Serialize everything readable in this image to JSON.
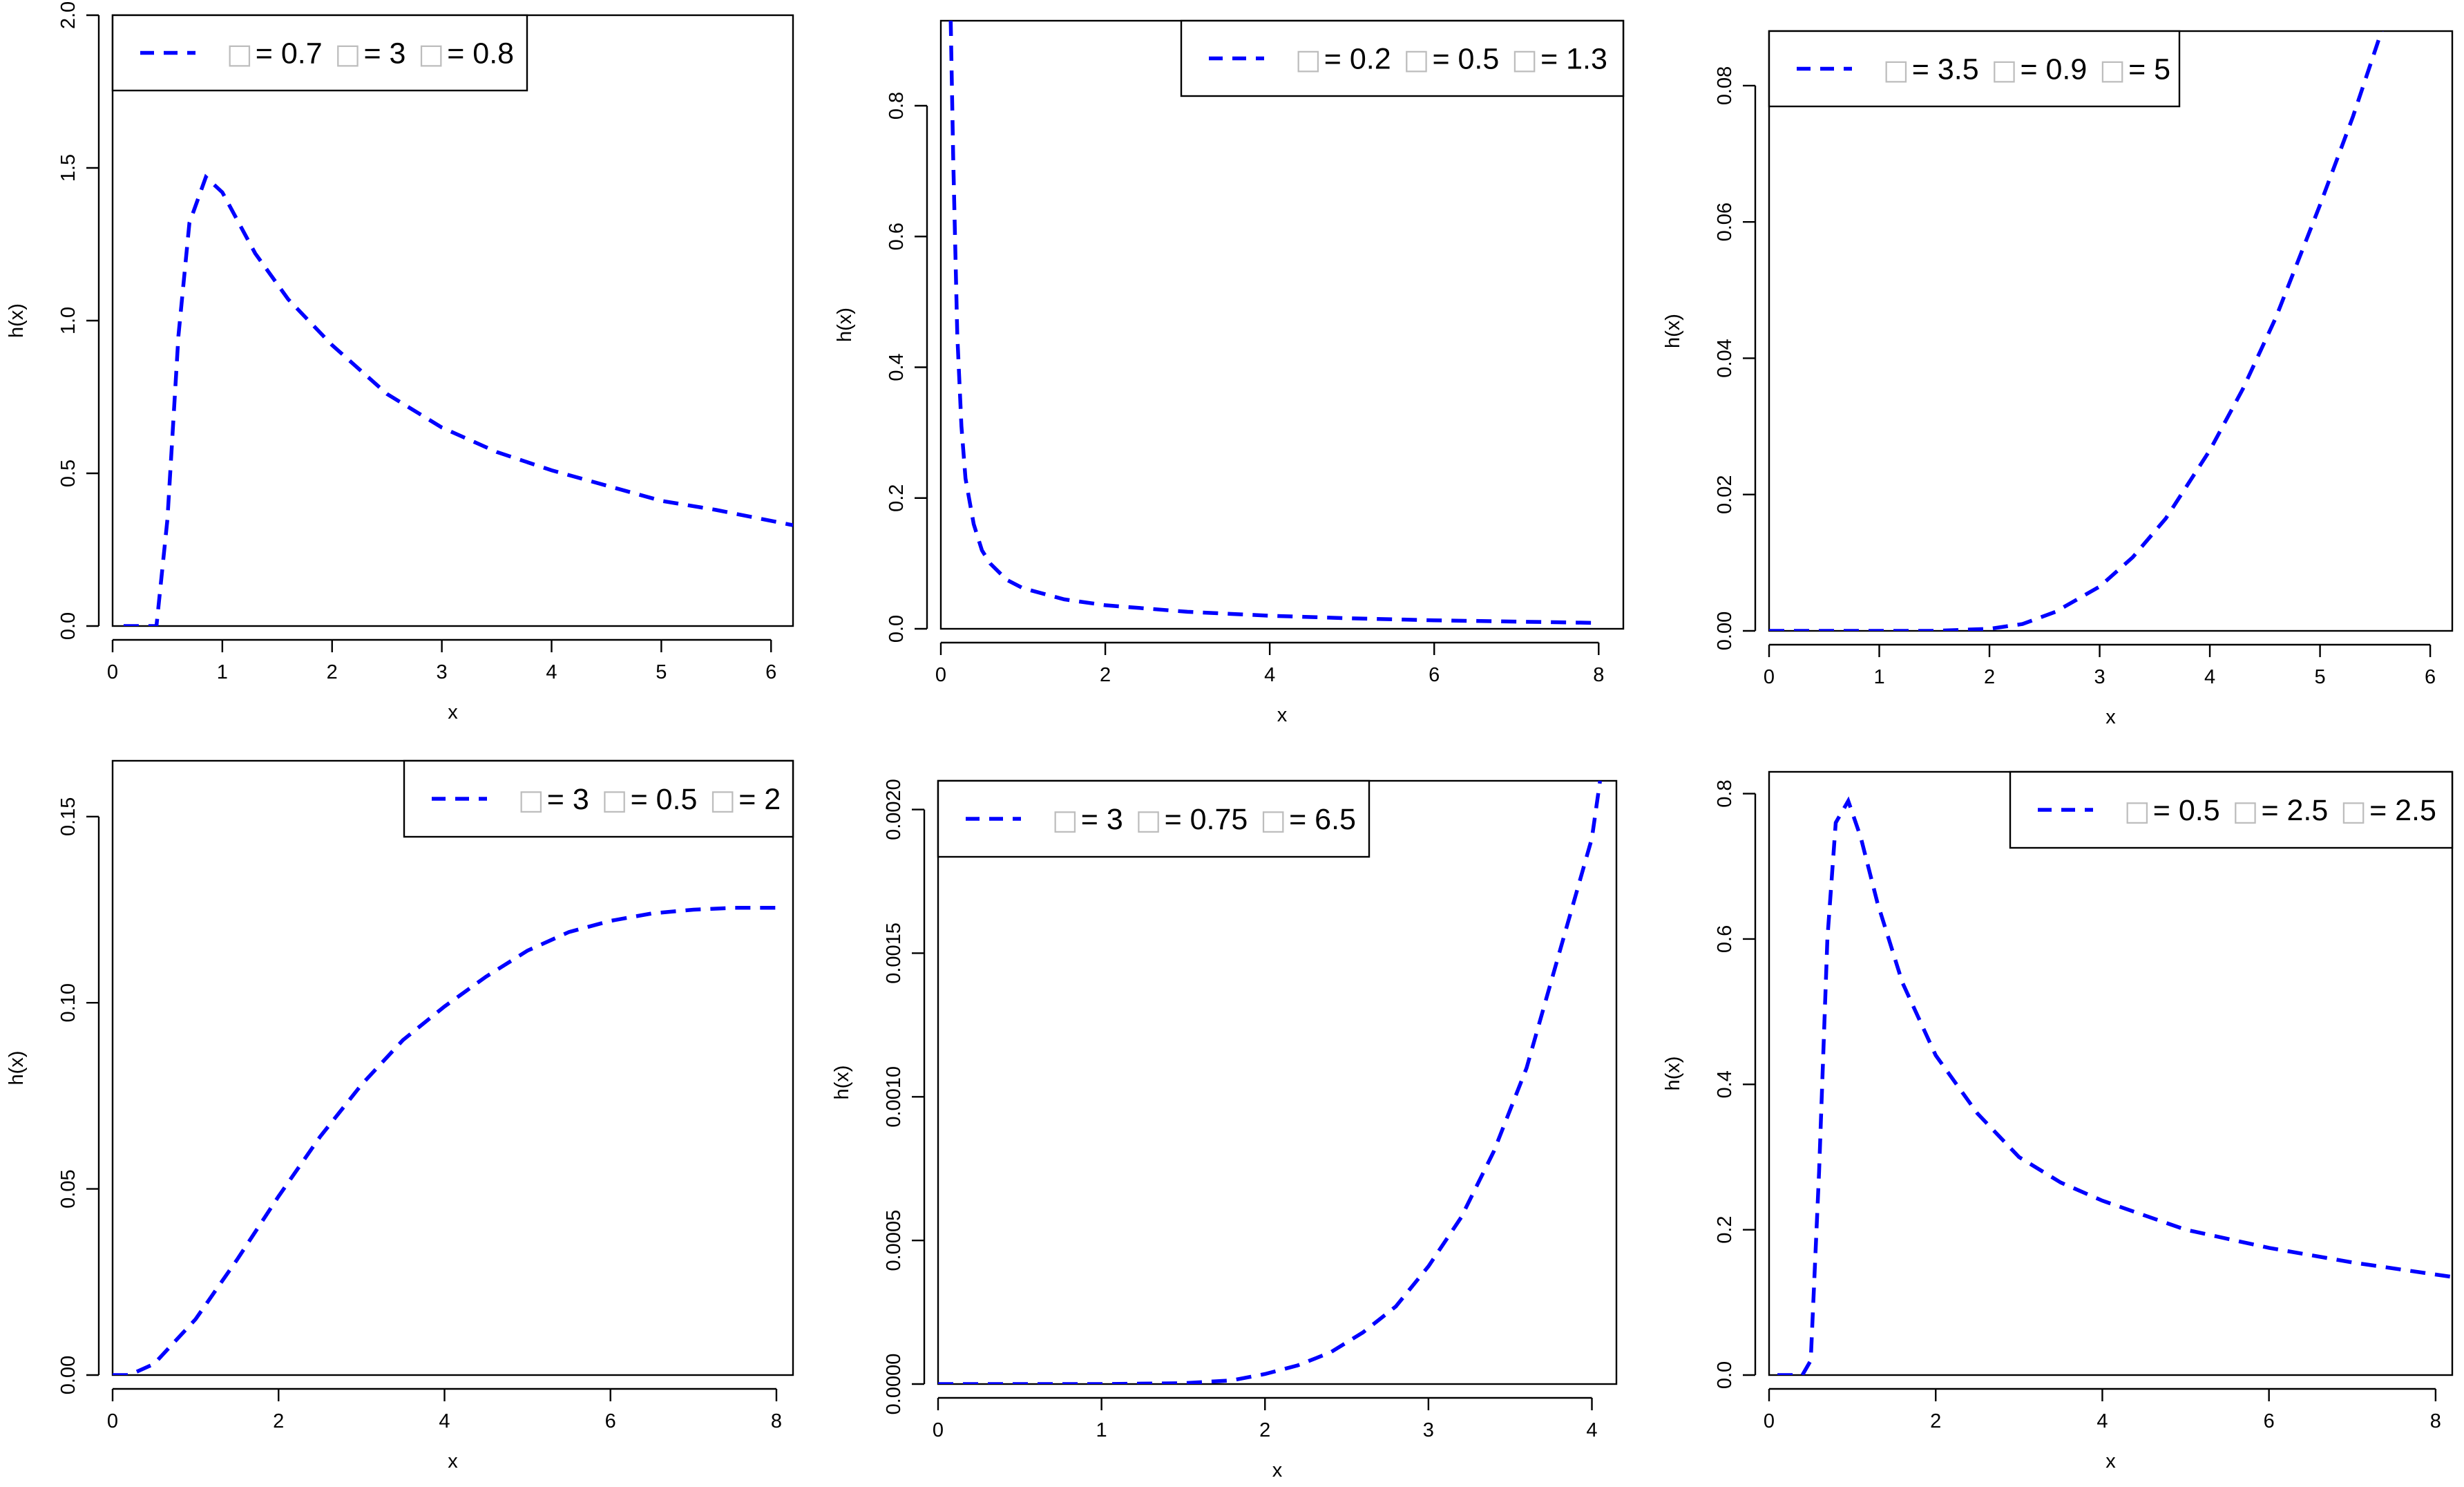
{
  "colors": {
    "curve": "#0000ff",
    "legend_glyph": "#bdbdbd"
  },
  "legend_glyph_char": "□",
  "chart_data": [
    {
      "type": "line",
      "xlabel": "x",
      "ylabel": "h(x)",
      "xlim": [
        0,
        6.2
      ],
      "ylim": [
        0,
        2.0
      ],
      "xticks": [
        {
          "v": 0,
          "label": "0"
        },
        {
          "v": 1,
          "label": "1"
        },
        {
          "v": 2,
          "label": "2"
        },
        {
          "v": 3,
          "label": "3"
        },
        {
          "v": 4,
          "label": "4"
        },
        {
          "v": 5,
          "label": "5"
        },
        {
          "v": 6,
          "label": "6"
        }
      ],
      "yticks": [
        {
          "v": 0,
          "label": "0.0"
        },
        {
          "v": 0.5,
          "label": "0.5"
        },
        {
          "v": 1.0,
          "label": "1.0"
        },
        {
          "v": 1.5,
          "label": "1.5"
        },
        {
          "v": 2.0,
          "label": "2.0"
        }
      ],
      "legend": {
        "position": "top-left",
        "text": "= 0.7  = 3  = 0.8",
        "params": [
          {
            "symbol": "=",
            "value": "0.7"
          },
          {
            "symbol": "=",
            "value": "3"
          },
          {
            "symbol": "=",
            "value": "0.8"
          }
        ]
      },
      "series": [
        {
          "x": [
            0.1,
            0.4,
            0.5,
            0.6,
            0.7,
            0.85,
            1.0,
            1.3,
            1.6,
            2.0,
            2.5,
            3.0,
            3.5,
            4.0,
            4.5,
            5.0,
            5.5,
            6.2
          ],
          "y": [
            0.0,
            0.0,
            0.35,
            0.95,
            1.32,
            1.47,
            1.42,
            1.22,
            1.07,
            0.92,
            0.76,
            0.65,
            0.57,
            0.51,
            0.46,
            0.41,
            0.38,
            0.33
          ]
        }
      ]
    },
    {
      "type": "line",
      "xlabel": "x",
      "ylabel": "h(x)",
      "xlim": [
        0,
        8.3
      ],
      "ylim": [
        0,
        0.93
      ],
      "xticks": [
        {
          "v": 0,
          "label": "0"
        },
        {
          "v": 2,
          "label": "2"
        },
        {
          "v": 4,
          "label": "4"
        },
        {
          "v": 6,
          "label": "6"
        },
        {
          "v": 8,
          "label": "8"
        }
      ],
      "yticks": [
        {
          "v": 0,
          "label": "0.0"
        },
        {
          "v": 0.2,
          "label": "0.2"
        },
        {
          "v": 0.4,
          "label": "0.4"
        },
        {
          "v": 0.6,
          "label": "0.6"
        },
        {
          "v": 0.8,
          "label": "0.8"
        }
      ],
      "legend": {
        "position": "top-right",
        "text": "= 0.2  = 0.5  = 1.3",
        "params": [
          {
            "symbol": "=",
            "value": "0.2"
          },
          {
            "symbol": "=",
            "value": "0.5"
          },
          {
            "symbol": "=",
            "value": "1.3"
          }
        ]
      },
      "series": [
        {
          "x": [
            0.12,
            0.15,
            0.2,
            0.25,
            0.3,
            0.4,
            0.5,
            0.6,
            0.8,
            1.0,
            1.5,
            2.0,
            3.0,
            4.0,
            5.0,
            6.0,
            7.0,
            8.0
          ],
          "y": [
            0.93,
            0.72,
            0.45,
            0.31,
            0.23,
            0.16,
            0.12,
            0.1,
            0.075,
            0.062,
            0.045,
            0.036,
            0.026,
            0.02,
            0.016,
            0.013,
            0.011,
            0.009
          ]
        }
      ]
    },
    {
      "type": "line",
      "xlabel": "x",
      "ylabel": "h(x)",
      "xlim": [
        0,
        6.2
      ],
      "ylim": [
        0,
        0.088
      ],
      "xticks": [
        {
          "v": 0,
          "label": "0"
        },
        {
          "v": 1,
          "label": "1"
        },
        {
          "v": 2,
          "label": "2"
        },
        {
          "v": 3,
          "label": "3"
        },
        {
          "v": 4,
          "label": "4"
        },
        {
          "v": 5,
          "label": "5"
        },
        {
          "v": 6,
          "label": "6"
        }
      ],
      "yticks": [
        {
          "v": 0,
          "label": "0.00"
        },
        {
          "v": 0.02,
          "label": "0.02"
        },
        {
          "v": 0.04,
          "label": "0.04"
        },
        {
          "v": 0.06,
          "label": "0.06"
        },
        {
          "v": 0.08,
          "label": "0.08"
        }
      ],
      "legend": {
        "position": "top-left",
        "text": "= 3.5  = 0.9  = 5",
        "params": [
          {
            "symbol": "=",
            "value": "3.5"
          },
          {
            "symbol": "=",
            "value": "0.9"
          },
          {
            "symbol": "=",
            "value": "5"
          }
        ]
      },
      "series": [
        {
          "x": [
            0.0,
            1.0,
            1.5,
            2.0,
            2.3,
            2.6,
            3.0,
            3.3,
            3.6,
            4.0,
            4.3,
            4.6,
            5.0,
            5.3,
            5.6
          ],
          "y": [
            0.0,
            0.0,
            0.0,
            0.0003,
            0.001,
            0.0028,
            0.0065,
            0.0108,
            0.0165,
            0.0265,
            0.0355,
            0.046,
            0.0625,
            0.0755,
            0.09
          ]
        }
      ]
    },
    {
      "type": "line",
      "xlabel": "x",
      "ylabel": "h(x)",
      "xlim": [
        0,
        8.2
      ],
      "ylim": [
        0,
        0.165
      ],
      "xticks": [
        {
          "v": 0,
          "label": "0"
        },
        {
          "v": 2,
          "label": "2"
        },
        {
          "v": 4,
          "label": "4"
        },
        {
          "v": 6,
          "label": "6"
        },
        {
          "v": 8,
          "label": "8"
        }
      ],
      "yticks": [
        {
          "v": 0,
          "label": "0.00"
        },
        {
          "v": 0.05,
          "label": "0.05"
        },
        {
          "v": 0.1,
          "label": "0.10"
        },
        {
          "v": 0.15,
          "label": "0.15"
        }
      ],
      "legend": {
        "position": "top-right",
        "text": "= 3  = 0.5  = 2",
        "params": [
          {
            "symbol": "=",
            "value": "3"
          },
          {
            "symbol": "=",
            "value": "0.5"
          },
          {
            "symbol": "=",
            "value": "2"
          }
        ]
      },
      "series": [
        {
          "x": [
            0.0,
            0.2,
            0.5,
            1.0,
            1.5,
            2.0,
            2.5,
            3.0,
            3.5,
            4.0,
            4.5,
            5.0,
            5.5,
            6.0,
            6.5,
            7.0,
            7.5,
            8.0
          ],
          "y": [
            0.0,
            0.0,
            0.003,
            0.015,
            0.031,
            0.048,
            0.064,
            0.078,
            0.09,
            0.099,
            0.107,
            0.114,
            0.119,
            0.122,
            0.124,
            0.125,
            0.1255,
            0.1255
          ]
        }
      ]
    },
    {
      "type": "line",
      "xlabel": "x",
      "ylabel": "h(x)",
      "xlim": [
        0,
        4.15
      ],
      "ylim": [
        0,
        0.0021
      ],
      "xticks": [
        {
          "v": 0,
          "label": "0"
        },
        {
          "v": 1,
          "label": "1"
        },
        {
          "v": 2,
          "label": "2"
        },
        {
          "v": 3,
          "label": "3"
        },
        {
          "v": 4,
          "label": "4"
        }
      ],
      "yticks": [
        {
          "v": 0,
          "label": "0.0000"
        },
        {
          "v": 0.0005,
          "label": "0.0005"
        },
        {
          "v": 0.001,
          "label": "0.0010"
        },
        {
          "v": 0.0015,
          "label": "0.0015"
        },
        {
          "v": 0.002,
          "label": "0.0020"
        }
      ],
      "legend": {
        "position": "top-left",
        "text": "= 3  = 0.75  = 6.5",
        "params": [
          {
            "symbol": "=",
            "value": "3"
          },
          {
            "symbol": "=",
            "value": "0.75"
          },
          {
            "symbol": "=",
            "value": "6.5"
          }
        ]
      },
      "series": [
        {
          "x": [
            0.0,
            1.0,
            1.5,
            1.8,
            2.0,
            2.2,
            2.4,
            2.6,
            2.8,
            3.0,
            3.2,
            3.4,
            3.6,
            3.8,
            4.0,
            4.05
          ],
          "y": [
            0.0,
            0.0,
            3e-06,
            1.3e-05,
            3.5e-05,
            6.5e-05,
            0.00011,
            0.00018,
            0.00027,
            0.00041,
            0.00058,
            0.00081,
            0.0011,
            0.0015,
            0.0019,
            0.0021
          ]
        }
      ]
    },
    {
      "type": "line",
      "xlabel": "x",
      "ylabel": "h(x)",
      "xlim": [
        0,
        8.2
      ],
      "ylim": [
        0,
        0.83
      ],
      "xticks": [
        {
          "v": 0,
          "label": "0"
        },
        {
          "v": 2,
          "label": "2"
        },
        {
          "v": 4,
          "label": "4"
        },
        {
          "v": 6,
          "label": "6"
        },
        {
          "v": 8,
          "label": "8"
        }
      ],
      "yticks": [
        {
          "v": 0,
          "label": "0.0"
        },
        {
          "v": 0.2,
          "label": "0.2"
        },
        {
          "v": 0.4,
          "label": "0.4"
        },
        {
          "v": 0.6,
          "label": "0.6"
        },
        {
          "v": 0.8,
          "label": "0.8"
        }
      ],
      "legend": {
        "position": "top-right",
        "text": "= 0.5  = 2.5  = 2.5",
        "params": [
          {
            "symbol": "=",
            "value": "0.5"
          },
          {
            "symbol": "=",
            "value": "2.5"
          },
          {
            "symbol": "=",
            "value": "2.5"
          }
        ]
      },
      "series": [
        {
          "x": [
            0.1,
            0.4,
            0.5,
            0.6,
            0.7,
            0.8,
            0.95,
            1.1,
            1.3,
            1.6,
            2.0,
            2.5,
            3.0,
            3.5,
            4.0,
            5.0,
            6.0,
            7.0,
            8.2
          ],
          "y": [
            0.0,
            0.0,
            0.02,
            0.28,
            0.6,
            0.76,
            0.79,
            0.74,
            0.65,
            0.54,
            0.44,
            0.36,
            0.3,
            0.265,
            0.24,
            0.2,
            0.175,
            0.155,
            0.135
          ]
        }
      ]
    }
  ]
}
